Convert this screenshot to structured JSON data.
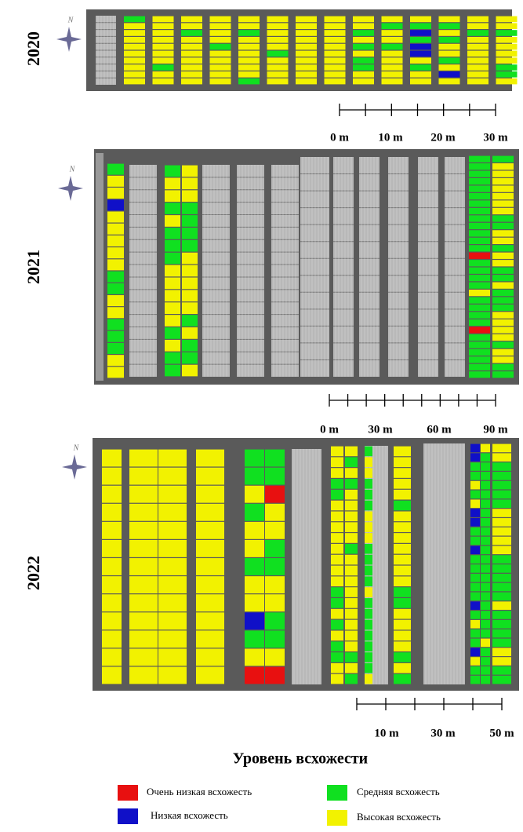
{
  "panels": [
    {
      "year": "2020",
      "north": "N",
      "scale": [
        "0 m",
        "10 m",
        "20 m",
        "30 m"
      ]
    },
    {
      "year": "2021",
      "north": "N",
      "scale": [
        "0 m",
        "30 m",
        "60 m",
        "90 m"
      ]
    },
    {
      "year": "2022",
      "north": "N",
      "scale": [
        "10 m",
        "30 m",
        "50 m"
      ]
    }
  ],
  "legend": {
    "title": "Уровень всхожести",
    "items": [
      {
        "label": "Очень низкая всхожесть",
        "color": "#e81010"
      },
      {
        "label": "Низкая всхожесть",
        "color": "#1010c8"
      },
      {
        "label": "Средняя всхожесть",
        "color": "#10e020"
      },
      {
        "label": "Высокая всхожесть",
        "color": "#f2f200"
      }
    ]
  }
}
